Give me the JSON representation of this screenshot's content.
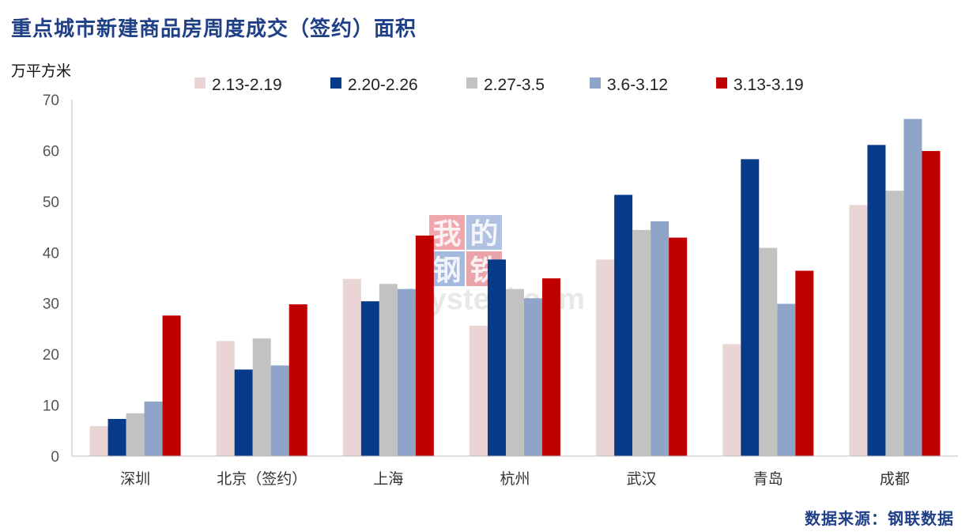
{
  "page": {
    "title": "重点城市新建商品房周度成交（签约）面积",
    "source": "数据来源：钢联数据"
  },
  "chart_data": {
    "type": "bar",
    "title": "重点城市新建商品房周度成交（签约）面积",
    "ylabel": "万平方米",
    "xlabel": "",
    "ylim": [
      0,
      70
    ],
    "yticks": [
      0,
      10,
      20,
      30,
      40,
      50,
      60,
      70
    ],
    "grid": false,
    "legend_position": "top",
    "categories": [
      "深圳",
      "北京（签约）",
      "上海",
      "杭州",
      "武汉",
      "青岛",
      "成都"
    ],
    "series": [
      {
        "name": "2.13-2.19",
        "color": "#ead5d5",
        "values": [
          5.9,
          22.6,
          34.8,
          25.6,
          38.6,
          22.0,
          49.3
        ]
      },
      {
        "name": "2.20-2.26",
        "color": "#063b8a",
        "values": [
          7.3,
          17.0,
          30.4,
          38.6,
          51.3,
          58.3,
          61.1
        ]
      },
      {
        "name": "2.27-3.5",
        "color": "#c2c2c2",
        "values": [
          8.4,
          23.1,
          33.8,
          32.8,
          44.4,
          40.9,
          52.1
        ]
      },
      {
        "name": "3.6-3.12",
        "color": "#8ea5c9",
        "values": [
          10.7,
          17.8,
          32.8,
          31.0,
          46.1,
          29.9,
          66.2
        ]
      },
      {
        "name": "3.13-3.19",
        "color": "#c00000",
        "values": [
          27.6,
          29.8,
          43.3,
          34.9,
          42.9,
          36.4,
          59.9
        ]
      }
    ]
  },
  "watermark": {
    "line1": [
      "我",
      "的"
    ],
    "line2": [
      "钢",
      "铁"
    ],
    "latin": "Mysteel.com",
    "colors": [
      "#e8828a",
      "#8fa6d4",
      "#7f9ad0",
      "#e07c86"
    ]
  }
}
